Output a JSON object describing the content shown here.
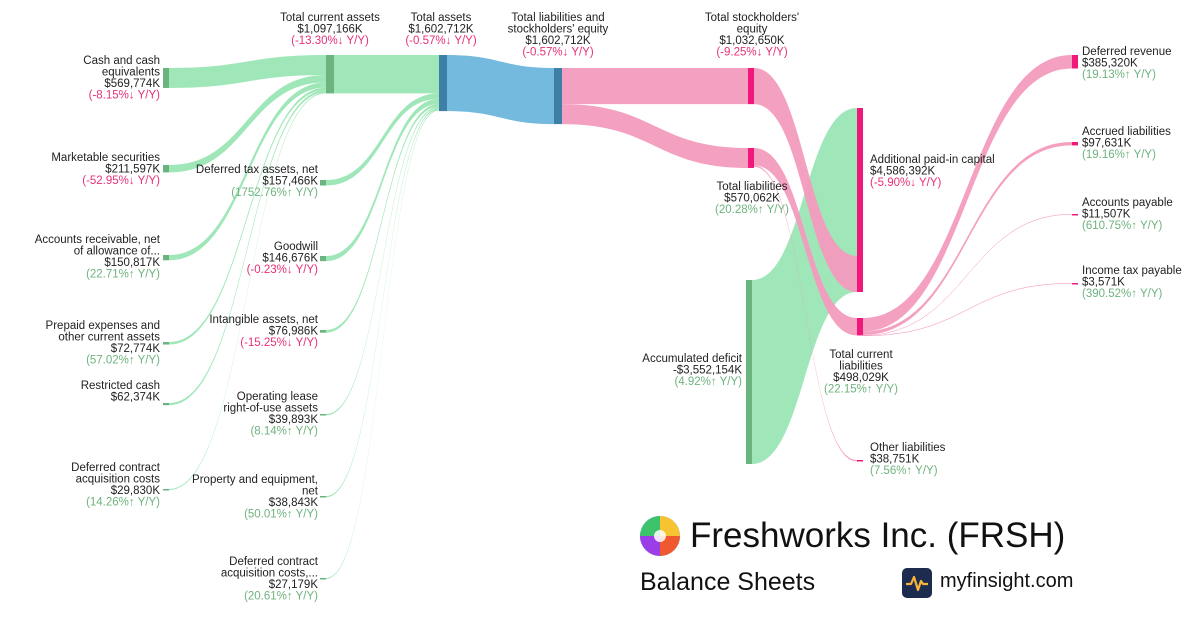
{
  "brand": {
    "company": "Freshworks Inc. (FRSH)",
    "subtitle": "Balance Sheets",
    "site": "myfinsight.com",
    "company_logo_icon": "freshworks-logo-icon",
    "site_logo_icon": "myfinsight-logo-icon"
  },
  "colors": {
    "asset_flow": "#9ae6b4",
    "asset_node": "#6bb37f",
    "total_assets_flow": "#6bb6dc",
    "total_assets_node": "#3d7fa6",
    "liability_flow": "#f39bbd",
    "liability_node": "#f0187a",
    "increase_text": "#6fb37e",
    "decrease_text": "#e8307a"
  },
  "chart_data": {
    "type": "sankey",
    "units": "USD thousands",
    "nodes": [
      {
        "id": "cash",
        "lines": [
          "Cash and cash",
          "equivalents"
        ],
        "value_label": "$569,774K",
        "change": "(-8.15%↓ Y/Y)",
        "dir": "down",
        "value": 569774
      },
      {
        "id": "marketable",
        "lines": [
          "Marketable securities"
        ],
        "value_label": "$211,597K",
        "change": "(-52.95%↓ Y/Y)",
        "dir": "down",
        "value": 211597
      },
      {
        "id": "receivables",
        "lines": [
          "Accounts receivable, net",
          "of allowance of..."
        ],
        "value_label": "$150,817K",
        "change": "(22.71%↑ Y/Y)",
        "dir": "up",
        "value": 150817
      },
      {
        "id": "prepaid",
        "lines": [
          "Prepaid expenses and",
          "other current assets"
        ],
        "value_label": "$72,774K",
        "change": "(57.02%↑ Y/Y)",
        "dir": "up",
        "value": 72774
      },
      {
        "id": "restricted",
        "lines": [
          "Restricted cash"
        ],
        "value_label": "$62,374K",
        "change": "",
        "dir": "",
        "value": 62374
      },
      {
        "id": "dcac_current",
        "lines": [
          "Deferred contract",
          "acquisition costs"
        ],
        "value_label": "$29,830K",
        "change": "(14.26%↑ Y/Y)",
        "dir": "up",
        "value": 29830
      },
      {
        "id": "total_current_assets",
        "lines": [
          "Total current assets"
        ],
        "value_label": "$1,097,166K",
        "change": "(-13.30%↓ Y/Y)",
        "dir": "down",
        "value": 1097166
      },
      {
        "id": "deferred_tax",
        "lines": [
          "Deferred tax assets, net"
        ],
        "value_label": "$157,466K",
        "change": "(1752.76%↑ Y/Y)",
        "dir": "up",
        "value": 157466
      },
      {
        "id": "goodwill",
        "lines": [
          "Goodwill"
        ],
        "value_label": "$146,676K",
        "change": "(-0.23%↓ Y/Y)",
        "dir": "down",
        "value": 146676
      },
      {
        "id": "intangibles",
        "lines": [
          "Intangible assets, net"
        ],
        "value_label": "$76,986K",
        "change": "(-15.25%↓ Y/Y)",
        "dir": "down",
        "value": 76986
      },
      {
        "id": "op_lease_rou",
        "lines": [
          "Operating lease",
          "right-of-use assets"
        ],
        "value_label": "$39,893K",
        "change": "(8.14%↑ Y/Y)",
        "dir": "up",
        "value": 39893
      },
      {
        "id": "ppe",
        "lines": [
          "Property and equipment,",
          "net"
        ],
        "value_label": "$38,843K",
        "change": "(50.01%↑ Y/Y)",
        "dir": "up",
        "value": 38843
      },
      {
        "id": "dcac_noncurrent",
        "lines": [
          "Deferred contract",
          "acquisition costs,..."
        ],
        "value_label": "$27,179K",
        "change": "(20.61%↑ Y/Y)",
        "dir": "up",
        "value": 27179
      },
      {
        "id": "total_assets",
        "lines": [
          "Total assets"
        ],
        "value_label": "$1,602,712K",
        "change": "(-0.57%↓ Y/Y)",
        "dir": "down",
        "value": 1602712
      },
      {
        "id": "total_le",
        "lines": [
          "Total liabilities and",
          "stockholders' equity"
        ],
        "value_label": "$1,602,712K",
        "change": "(-0.57%↓ Y/Y)",
        "dir": "down",
        "value": 1602712
      },
      {
        "id": "equity",
        "lines": [
          "Total stockholders'",
          "equity"
        ],
        "value_label": "$1,032,650K",
        "change": "(-9.25%↓ Y/Y)",
        "dir": "down",
        "value": 1032650
      },
      {
        "id": "total_liabilities",
        "lines": [
          "Total liabilities"
        ],
        "value_label": "$570,062K",
        "change": "(20.28%↑ Y/Y)",
        "dir": "up",
        "value": 570062
      },
      {
        "id": "accum_deficit",
        "lines": [
          "Accumulated deficit"
        ],
        "value_label": "-$3,552,154K",
        "change": "(4.92%↑ Y/Y)",
        "dir": "up",
        "value": -3552154
      },
      {
        "id": "apic",
        "lines": [
          "Additional paid-in capital"
        ],
        "value_label": "$4,586,392K",
        "change": "(-5.90%↓ Y/Y)",
        "dir": "down",
        "value": 4586392
      },
      {
        "id": "total_current_liab",
        "lines": [
          "Total current",
          "liabilities"
        ],
        "value_label": "$498,029K",
        "change": "(22.15%↑ Y/Y)",
        "dir": "up",
        "value": 498029
      },
      {
        "id": "other_liab",
        "lines": [
          "Other liabilities"
        ],
        "value_label": "$38,751K",
        "change": "(7.56%↑ Y/Y)",
        "dir": "up",
        "value": 38751
      },
      {
        "id": "deferred_revenue",
        "lines": [
          "Deferred revenue"
        ],
        "value_label": "$385,320K",
        "change": "(19.13%↑ Y/Y)",
        "dir": "up",
        "value": 385320
      },
      {
        "id": "accrued",
        "lines": [
          "Accrued liabilities"
        ],
        "value_label": "$97,631K",
        "change": "(19.16%↑ Y/Y)",
        "dir": "up",
        "value": 97631
      },
      {
        "id": "payable",
        "lines": [
          "Accounts payable"
        ],
        "value_label": "$11,507K",
        "change": "(610.75%↑ Y/Y)",
        "dir": "up",
        "value": 11507
      },
      {
        "id": "income_tax",
        "lines": [
          "Income tax payable"
        ],
        "value_label": "$3,571K",
        "change": "(390.52%↑ Y/Y)",
        "dir": "up",
        "value": 3571
      }
    ],
    "links": [
      {
        "source": "cash",
        "target": "total_current_assets",
        "value": 569774
      },
      {
        "source": "marketable",
        "target": "total_current_assets",
        "value": 211597
      },
      {
        "source": "receivables",
        "target": "total_current_assets",
        "value": 150817
      },
      {
        "source": "prepaid",
        "target": "total_current_assets",
        "value": 72774
      },
      {
        "source": "restricted",
        "target": "total_current_assets",
        "value": 62374
      },
      {
        "source": "dcac_current",
        "target": "total_current_assets",
        "value": 29830
      },
      {
        "source": "total_current_assets",
        "target": "total_assets",
        "value": 1097166
      },
      {
        "source": "deferred_tax",
        "target": "total_assets",
        "value": 157466
      },
      {
        "source": "goodwill",
        "target": "total_assets",
        "value": 146676
      },
      {
        "source": "intangibles",
        "target": "total_assets",
        "value": 76986
      },
      {
        "source": "op_lease_rou",
        "target": "total_assets",
        "value": 39893
      },
      {
        "source": "ppe",
        "target": "total_assets",
        "value": 38843
      },
      {
        "source": "dcac_noncurrent",
        "target": "total_assets",
        "value": 27179
      },
      {
        "source": "total_assets",
        "target": "total_le",
        "value": 1602712
      },
      {
        "source": "total_le",
        "target": "equity",
        "value": 1032650
      },
      {
        "source": "total_le",
        "target": "total_liabilities",
        "value": 570062
      },
      {
        "source": "accum_deficit",
        "target": "apic",
        "value": 3552154
      },
      {
        "source": "equity",
        "target": "apic",
        "value": 1032650
      },
      {
        "source": "total_liabilities",
        "target": "total_current_liab",
        "value": 498029
      },
      {
        "source": "total_liabilities",
        "target": "other_liab",
        "value": 38751
      },
      {
        "source": "total_current_liab",
        "target": "deferred_revenue",
        "value": 385320
      },
      {
        "source": "total_current_liab",
        "target": "accrued",
        "value": 97631
      },
      {
        "source": "total_current_liab",
        "target": "payable",
        "value": 11507
      },
      {
        "source": "total_current_liab",
        "target": "income_tax",
        "value": 3571
      }
    ]
  }
}
